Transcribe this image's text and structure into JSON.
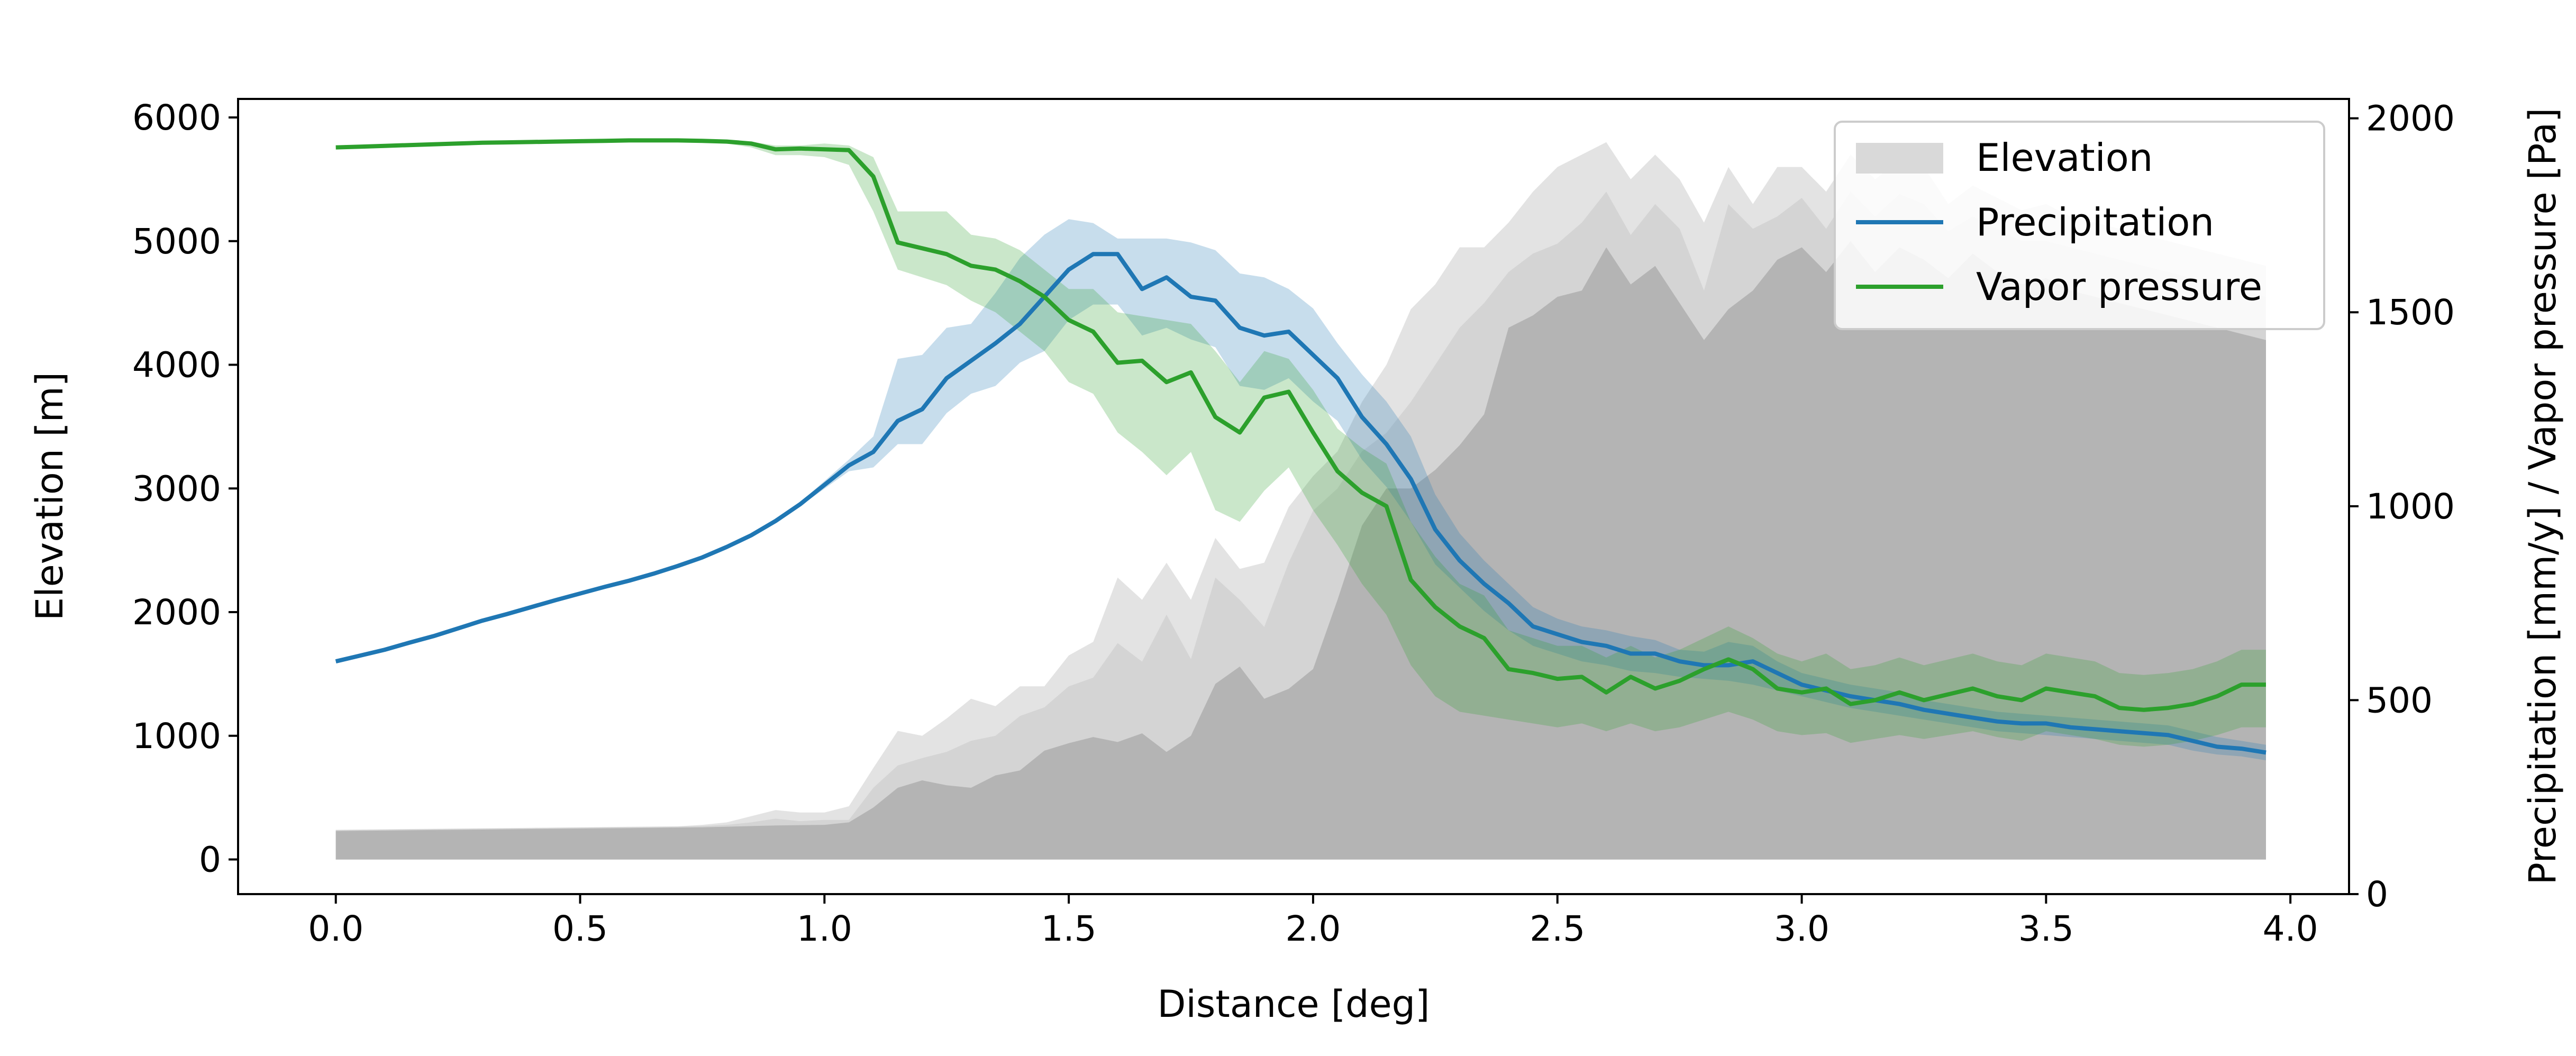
{
  "chart_data": {
    "type": "area+line",
    "xlabel": "Distance [deg]",
    "ylabel_left": "Elevation [m]",
    "ylabel_right": "Precipitation [mm/y] / Vapor pressure [Pa]",
    "xlim": [
      -0.2,
      4.12
    ],
    "ylim_left": [
      -280,
      6150
    ],
    "ylim_right": [
      0,
      2050
    ],
    "x_ticks": [
      0.0,
      0.5,
      1.0,
      1.5,
      2.0,
      2.5,
      3.0,
      3.5,
      4.0
    ],
    "x_tick_labels": [
      "0.0",
      "0.5",
      "1.0",
      "1.5",
      "2.0",
      "2.5",
      "3.0",
      "3.5",
      "4.0"
    ],
    "y_left_ticks": [
      0,
      1000,
      2000,
      3000,
      4000,
      5000,
      6000
    ],
    "y_left_tick_labels": [
      "0",
      "1000",
      "2000",
      "3000",
      "4000",
      "5000",
      "6000"
    ],
    "y_right_ticks": [
      0,
      500,
      1000,
      1500,
      2000
    ],
    "y_right_tick_labels": [
      "0",
      "500",
      "1000",
      "1500",
      "2000"
    ],
    "legend": {
      "position": "top-right",
      "entries": [
        {
          "label": "Elevation",
          "kind": "patch",
          "color": "#d9d9d9"
        },
        {
          "label": "Precipitation",
          "kind": "line",
          "color": "#1f77b4"
        },
        {
          "label": "Vapor pressure",
          "kind": "line",
          "color": "#2ca02c"
        }
      ]
    },
    "colors": {
      "elevation_outer": "#e3e3e3",
      "elevation_mid": "#d4d4d4",
      "elevation_core": "#b4b4b4",
      "precipitation": "#1f77b4",
      "vapor_pressure": "#2ca02c"
    },
    "x": [
      0.0,
      0.05,
      0.1,
      0.15,
      0.2,
      0.25,
      0.3,
      0.35,
      0.4,
      0.45,
      0.5,
      0.55,
      0.6,
      0.65,
      0.7,
      0.75,
      0.8,
      0.85,
      0.9,
      0.95,
      1.0,
      1.05,
      1.1,
      1.15,
      1.2,
      1.25,
      1.3,
      1.35,
      1.4,
      1.45,
      1.5,
      1.55,
      1.6,
      1.65,
      1.7,
      1.75,
      1.8,
      1.85,
      1.9,
      1.95,
      2.0,
      2.05,
      2.1,
      2.15,
      2.2,
      2.25,
      2.3,
      2.35,
      2.4,
      2.45,
      2.5,
      2.55,
      2.6,
      2.65,
      2.7,
      2.75,
      2.8,
      2.85,
      2.9,
      2.95,
      3.0,
      3.05,
      3.1,
      3.15,
      3.2,
      3.25,
      3.3,
      3.35,
      3.4,
      3.45,
      3.5,
      3.55,
      3.6,
      3.65,
      3.7,
      3.75,
      3.8,
      3.85,
      3.9,
      3.95
    ],
    "elevation_core": [
      230,
      232,
      234,
      236,
      238,
      240,
      242,
      244,
      246,
      248,
      250,
      252,
      254,
      256,
      258,
      260,
      265,
      270,
      275,
      278,
      280,
      300,
      420,
      580,
      640,
      600,
      580,
      680,
      720,
      880,
      940,
      990,
      950,
      1020,
      870,
      1000,
      1420,
      1560,
      1300,
      1380,
      1540,
      2100,
      2700,
      3000,
      3000,
      3150,
      3350,
      3600,
      4300,
      4400,
      4550,
      4600,
      4950,
      4650,
      4800,
      4500,
      4200,
      4450,
      4600,
      4850,
      4950,
      4750,
      5000,
      4750,
      4950,
      4850,
      4700,
      4900,
      4750,
      4650,
      4700,
      4600,
      4550,
      4500,
      4450,
      4400,
      4350,
      4300,
      4250,
      4200
    ],
    "elevation_mid": [
      238,
      240,
      242,
      244,
      246,
      248,
      250,
      252,
      254,
      256,
      258,
      260,
      262,
      264,
      266,
      270,
      280,
      300,
      330,
      310,
      320,
      320,
      580,
      760,
      820,
      870,
      960,
      1000,
      1160,
      1230,
      1400,
      1470,
      1750,
      1600,
      1980,
      1620,
      2280,
      2100,
      1880,
      2400,
      2820,
      3000,
      3300,
      3450,
      3700,
      4000,
      4300,
      4500,
      4750,
      4900,
      4980,
      5150,
      5400,
      5050,
      5300,
      5100,
      4600,
      5300,
      5100,
      5200,
      5350,
      5100,
      5400,
      5200,
      5380,
      5300,
      5080,
      5200,
      5100,
      5000,
      5000,
      4950,
      4900,
      4850,
      4800,
      4750,
      4700,
      4650,
      4600,
      4550
    ],
    "elevation_outer": [
      240,
      242,
      244,
      246,
      248,
      250,
      252,
      254,
      256,
      258,
      260,
      262,
      264,
      266,
      268,
      280,
      300,
      350,
      400,
      380,
      380,
      430,
      740,
      1040,
      1000,
      1140,
      1300,
      1240,
      1400,
      1400,
      1650,
      1760,
      2280,
      2100,
      2400,
      2100,
      2600,
      2350,
      2400,
      2850,
      3100,
      3300,
      3700,
      4000,
      4450,
      4650,
      4950,
      4950,
      5150,
      5400,
      5600,
      5700,
      5800,
      5500,
      5700,
      5500,
      5150,
      5600,
      5300,
      5600,
      5600,
      5400,
      5700,
      5500,
      5650,
      5600,
      5300,
      5450,
      5350,
      5250,
      5300,
      5200,
      5150,
      5100,
      5050,
      5000,
      4950,
      4900,
      4850,
      4800
    ],
    "precipitation": [
      600,
      615,
      630,
      648,
      665,
      685,
      705,
      722,
      740,
      758,
      775,
      792,
      808,
      826,
      846,
      868,
      895,
      925,
      962,
      1005,
      1055,
      1105,
      1140,
      1220,
      1250,
      1330,
      1375,
      1420,
      1470,
      1540,
      1610,
      1650,
      1650,
      1560,
      1590,
      1540,
      1530,
      1460,
      1440,
      1450,
      1390,
      1330,
      1230,
      1160,
      1070,
      940,
      860,
      800,
      750,
      690,
      670,
      650,
      640,
      620,
      620,
      600,
      590,
      590,
      600,
      570,
      540,
      525,
      510,
      500,
      490,
      475,
      465,
      455,
      445,
      440,
      440,
      430,
      425,
      420,
      415,
      410,
      395,
      380,
      375,
      365
    ],
    "precipitation_low": [
      600,
      615,
      630,
      648,
      665,
      685,
      705,
      722,
      740,
      758,
      775,
      792,
      808,
      826,
      846,
      868,
      895,
      925,
      962,
      1000,
      1045,
      1090,
      1100,
      1160,
      1160,
      1240,
      1290,
      1310,
      1370,
      1400,
      1480,
      1520,
      1520,
      1440,
      1460,
      1430,
      1410,
      1310,
      1300,
      1330,
      1270,
      1220,
      1120,
      1050,
      960,
      850,
      790,
      730,
      680,
      640,
      620,
      600,
      590,
      575,
      570,
      560,
      555,
      550,
      540,
      525,
      510,
      495,
      480,
      470,
      460,
      450,
      440,
      430,
      420,
      415,
      410,
      405,
      400,
      395,
      390,
      385,
      370,
      360,
      355,
      345
    ],
    "precipitation_high": [
      600,
      615,
      630,
      648,
      665,
      685,
      705,
      722,
      740,
      758,
      775,
      792,
      808,
      826,
      846,
      868,
      895,
      925,
      962,
      1010,
      1065,
      1120,
      1180,
      1380,
      1390,
      1460,
      1470,
      1550,
      1640,
      1700,
      1740,
      1730,
      1690,
      1690,
      1690,
      1680,
      1660,
      1600,
      1590,
      1560,
      1510,
      1420,
      1340,
      1270,
      1180,
      1030,
      930,
      860,
      800,
      740,
      710,
      690,
      680,
      665,
      655,
      630,
      625,
      650,
      640,
      600,
      570,
      555,
      540,
      530,
      520,
      500,
      490,
      480,
      470,
      465,
      460,
      455,
      450,
      445,
      440,
      435,
      420,
      405,
      395,
      385
    ],
    "vapor_pressure": [
      1925,
      1927,
      1929,
      1931,
      1933,
      1935,
      1937,
      1938,
      1939,
      1940,
      1941,
      1942,
      1943,
      1943,
      1943,
      1942,
      1940,
      1935,
      1920,
      1922,
      1920,
      1918,
      1850,
      1680,
      1665,
      1650,
      1620,
      1610,
      1580,
      1540,
      1480,
      1450,
      1370,
      1375,
      1320,
      1345,
      1230,
      1190,
      1280,
      1295,
      1190,
      1090,
      1035,
      1000,
      810,
      740,
      690,
      660,
      580,
      570,
      555,
      560,
      520,
      560,
      530,
      550,
      580,
      605,
      580,
      530,
      520,
      530,
      490,
      500,
      520,
      500,
      515,
      530,
      510,
      500,
      530,
      520,
      510,
      480,
      475,
      480,
      490,
      510,
      540,
      540
    ],
    "vapor_pressure_low": [
      1925,
      1927,
      1929,
      1931,
      1933,
      1935,
      1937,
      1938,
      1939,
      1940,
      1941,
      1942,
      1943,
      1943,
      1943,
      1942,
      1935,
      1925,
      1905,
      1905,
      1900,
      1880,
      1760,
      1610,
      1590,
      1570,
      1530,
      1500,
      1450,
      1400,
      1320,
      1290,
      1190,
      1140,
      1080,
      1140,
      990,
      960,
      1040,
      1100,
      990,
      900,
      800,
      720,
      590,
      510,
      470,
      460,
      450,
      440,
      430,
      440,
      420,
      440,
      420,
      430,
      450,
      470,
      450,
      420,
      410,
      415,
      390,
      400,
      410,
      400,
      410,
      420,
      405,
      395,
      420,
      410,
      400,
      385,
      380,
      385,
      395,
      410,
      430,
      430
    ],
    "vapor_pressure_high": [
      1925,
      1927,
      1929,
      1931,
      1933,
      1935,
      1937,
      1938,
      1939,
      1940,
      1941,
      1942,
      1943,
      1943,
      1943,
      1942,
      1943,
      1940,
      1930,
      1930,
      1935,
      1930,
      1900,
      1760,
      1760,
      1760,
      1700,
      1690,
      1660,
      1610,
      1560,
      1560,
      1500,
      1490,
      1480,
      1470,
      1400,
      1320,
      1400,
      1380,
      1300,
      1200,
      1150,
      1110,
      960,
      870,
      800,
      770,
      680,
      660,
      640,
      640,
      610,
      640,
      610,
      630,
      660,
      690,
      660,
      620,
      600,
      620,
      580,
      590,
      610,
      590,
      605,
      620,
      600,
      590,
      620,
      610,
      600,
      570,
      565,
      570,
      580,
      600,
      630,
      630
    ]
  }
}
